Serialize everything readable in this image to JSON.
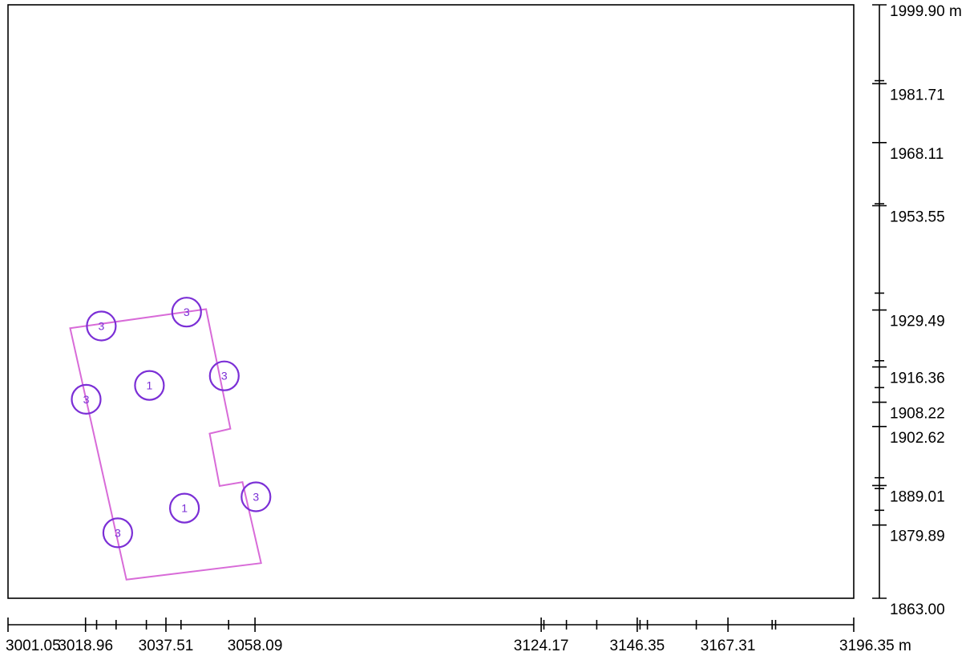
{
  "colors": {
    "frame": "#000000",
    "outline": "#d86bd8",
    "marker": "#7b2fd6"
  },
  "x_axis": {
    "unit": "m",
    "range": [
      3001.05,
      3196.35
    ],
    "labeled_ticks": [
      "3001.05",
      "3018.96",
      "3037.51",
      "3058.09",
      "3124.17",
      "3146.35",
      "3167.31",
      "3196.35 m"
    ],
    "minor_tick_values": [
      3021.5,
      3026.0,
      3033.0,
      3041.0,
      3052.0,
      3124.8,
      3130.0,
      3137.0,
      3147.0,
      3148.7,
      3160.0,
      3177.5,
      3178.3
    ]
  },
  "y_axis": {
    "unit": "m",
    "range": [
      1863.0,
      1999.9
    ],
    "labeled_ticks": [
      "1999.90 m",
      "1981.71",
      "1968.11",
      "1953.55",
      "1929.49",
      "1916.36",
      "1908.22",
      "1902.62",
      "1889.01",
      "1879.89",
      "1863.00"
    ],
    "minor_tick_values": [
      1982.4,
      1954.0,
      1933.4,
      1917.8,
      1911.6,
      1890.8,
      1888.3,
      1883.3
    ]
  },
  "outline": {
    "vertices": [
      [
        3015.4,
        1925.3
      ],
      [
        3046.8,
        1929.7
      ],
      [
        3052.4,
        1902.1
      ],
      [
        3047.6,
        1901.0
      ],
      [
        3049.9,
        1888.9
      ],
      [
        3055.2,
        1889.8
      ],
      [
        3059.5,
        1871.1
      ],
      [
        3028.4,
        1867.3
      ]
    ]
  },
  "markers": [
    {
      "label": "3",
      "x": 3022.6,
      "y": 1925.8
    },
    {
      "label": "3",
      "x": 3042.3,
      "y": 1929.0
    },
    {
      "label": "3",
      "x": 3051.0,
      "y": 1914.3
    },
    {
      "label": "1",
      "x": 3033.7,
      "y": 1912.1
    },
    {
      "label": "3",
      "x": 3019.1,
      "y": 1908.9
    },
    {
      "label": "3",
      "x": 3058.3,
      "y": 1886.4
    },
    {
      "label": "1",
      "x": 3041.8,
      "y": 1883.8
    },
    {
      "label": "3",
      "x": 3026.4,
      "y": 1878.1
    }
  ]
}
